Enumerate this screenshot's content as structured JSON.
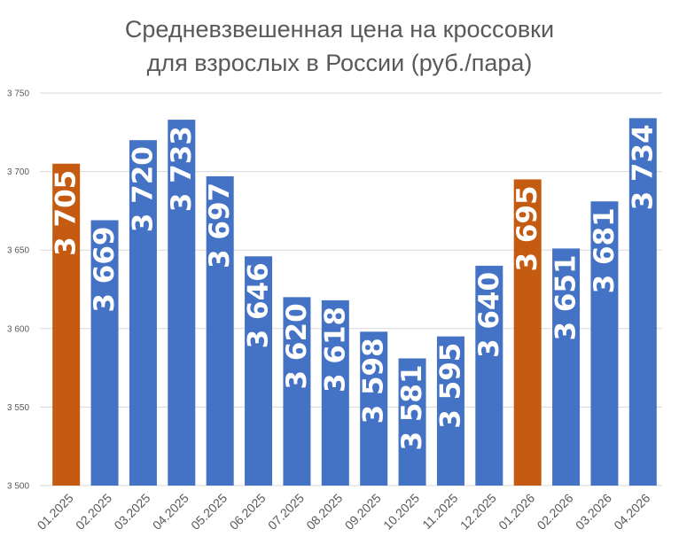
{
  "chart_data": {
    "type": "bar",
    "title_lines": [
      "Средневзвешенная цена на кроссовки",
      "для взрослых в России (руб./пара)"
    ],
    "categories": [
      "01.2025",
      "02.2025",
      "03.2025",
      "04.2025",
      "05.2025",
      "06.2025",
      "07.2025",
      "08.2025",
      "09.2025",
      "10.2025",
      "11.2025",
      "12.2025",
      "01.2026",
      "02.2026",
      "03.2026",
      "04.2026"
    ],
    "values": [
      3705,
      3669,
      3720,
      3733,
      3697,
      3646,
      3620,
      3618,
      3598,
      3581,
      3595,
      3640,
      3695,
      3651,
      3681,
      3734
    ],
    "value_labels": [
      "3 705",
      "3 669",
      "3 720",
      "3 733",
      "3 697",
      "3 646",
      "3 620",
      "3 618",
      "3 598",
      "3 581",
      "3 595",
      "3 640",
      "3 695",
      "3 651",
      "3 681",
      "3 734"
    ],
    "ylim": [
      3500,
      3750
    ],
    "yticks": [
      3500,
      3550,
      3600,
      3650,
      3700,
      3750
    ],
    "ytick_labels": [
      "3 500",
      "3 550",
      "3 600",
      "3 650",
      "3 700",
      "3 750"
    ],
    "grid": true,
    "legend": "none",
    "colors": {
      "default_bar": "#4472C4",
      "highlight_bar": "#C55A11",
      "gridline": "#D9D9D9",
      "text": "#595959"
    },
    "highlighted_categories": [
      "01.2025",
      "01.2026"
    ]
  }
}
